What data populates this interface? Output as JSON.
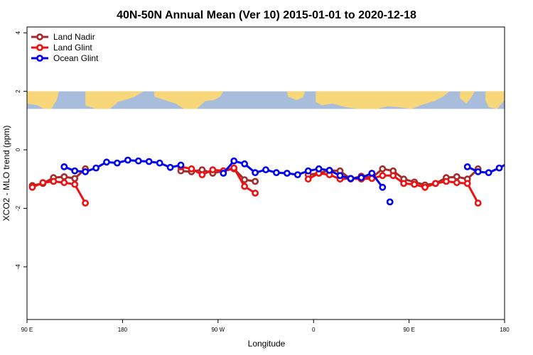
{
  "chart_data": {
    "type": "line",
    "title": "40N-50N Annual Mean (Ver 10)   2015-01-01 to 2020-12-18",
    "xlabel": "Longitude",
    "ylabel": "XCO2 - MLO trend (ppm)",
    "xlim": [
      90,
      540
    ],
    "ylim": [
      -5.8,
      4.2
    ],
    "x_ticks": [
      {
        "value": 90,
        "label": "90 E"
      },
      {
        "value": 180,
        "label": "180"
      },
      {
        "value": 270,
        "label": "90 W"
      },
      {
        "value": 360,
        "label": "0"
      },
      {
        "value": 450,
        "label": "90 E"
      },
      {
        "value": 540,
        "label": "180"
      }
    ],
    "y_ticks": [
      {
        "value": 4,
        "label": "4"
      },
      {
        "value": 2,
        "label": "2"
      },
      {
        "value": 0,
        "label": "0"
      },
      {
        "value": -2,
        "label": "-2"
      },
      {
        "value": -4,
        "label": "-4"
      }
    ],
    "legend_position": "top-left",
    "map_band": {
      "ymin": 1.4,
      "ymax": 2.0,
      "ocean_color": "#a8bddb",
      "land_color": "#f8d67a"
    },
    "series": [
      {
        "name": "Land Nadir",
        "color": "#a52a2a",
        "segments": [
          [
            [
              95,
              -1.22
            ],
            [
              105,
              -1.15
            ],
            [
              115,
              -0.95
            ],
            [
              125,
              -0.92
            ],
            [
              135,
              -0.98
            ],
            [
              145,
              -0.65
            ]
          ],
          [
            [
              235,
              -0.72
            ],
            [
              245,
              -0.75
            ],
            [
              255,
              -0.68
            ],
            [
              265,
              -0.8
            ],
            [
              275,
              -0.72
            ],
            [
              285,
              -0.65
            ],
            [
              295,
              -1.02
            ],
            [
              305,
              -1.08
            ]
          ],
          [
            [
              355,
              -0.85
            ],
            [
              365,
              -0.8
            ],
            [
              375,
              -0.7
            ],
            [
              385,
              -0.72
            ],
            [
              395,
              -1.0
            ],
            [
              405,
              -0.9
            ],
            [
              415,
              -0.95
            ],
            [
              425,
              -0.65
            ],
            [
              435,
              -0.72
            ],
            [
              445,
              -1.0
            ],
            [
              455,
              -1.1
            ],
            [
              465,
              -1.2
            ],
            [
              475,
              -1.15
            ],
            [
              485,
              -0.95
            ],
            [
              495,
              -0.92
            ],
            [
              505,
              -1.0
            ],
            [
              515,
              -0.65
            ]
          ]
        ]
      },
      {
        "name": "Land Glint",
        "color": "#ee1111",
        "segments": [
          [
            [
              95,
              -1.28
            ],
            [
              105,
              -1.12
            ],
            [
              115,
              -1.08
            ],
            [
              125,
              -1.12
            ],
            [
              135,
              -1.18
            ],
            [
              145,
              -1.82
            ]
          ],
          [
            [
              235,
              -0.58
            ],
            [
              245,
              -0.65
            ],
            [
              255,
              -0.85
            ],
            [
              265,
              -0.68
            ],
            [
              275,
              -0.72
            ],
            [
              285,
              -0.62
            ],
            [
              295,
              -1.25
            ],
            [
              305,
              -1.48
            ]
          ],
          [
            [
              355,
              -1.0
            ],
            [
              365,
              -0.8
            ],
            [
              375,
              -0.85
            ],
            [
              385,
              -1.0
            ],
            [
              395,
              -0.98
            ],
            [
              405,
              -1.0
            ],
            [
              415,
              -0.98
            ],
            [
              425,
              -0.88
            ],
            [
              435,
              -0.88
            ],
            [
              445,
              -1.15
            ],
            [
              455,
              -1.18
            ],
            [
              465,
              -1.28
            ],
            [
              475,
              -1.15
            ],
            [
              485,
              -1.08
            ],
            [
              495,
              -1.12
            ],
            [
              505,
              -1.15
            ],
            [
              515,
              -1.82
            ]
          ]
        ]
      },
      {
        "name": "Ocean Glint",
        "color": "#0000ee",
        "segments": [
          [
            [
              125,
              -0.58
            ],
            [
              135,
              -0.72
            ],
            [
              145,
              -0.75
            ],
            [
              155,
              -0.62
            ],
            [
              165,
              -0.42
            ],
            [
              175,
              -0.45
            ],
            [
              185,
              -0.35
            ],
            [
              195,
              -0.38
            ],
            [
              205,
              -0.4
            ],
            [
              215,
              -0.45
            ],
            [
              225,
              -0.6
            ],
            [
              235,
              -0.52
            ]
          ],
          [
            [
              275,
              -0.8
            ],
            [
              285,
              -0.38
            ],
            [
              295,
              -0.48
            ],
            [
              305,
              -0.78
            ],
            [
              315,
              -0.68
            ],
            [
              325,
              -0.78
            ],
            [
              335,
              -0.8
            ],
            [
              345,
              -0.85
            ],
            [
              355,
              -0.72
            ],
            [
              365,
              -0.65
            ],
            [
              375,
              -0.7
            ],
            [
              385,
              -0.88
            ],
            [
              395,
              -0.98
            ],
            [
              405,
              -0.95
            ],
            [
              415,
              -0.8
            ],
            [
              425,
              -1.28
            ]
          ],
          [
            [
              432,
              -1.78
            ]
          ],
          [
            [
              505,
              -0.58
            ],
            [
              515,
              -0.75
            ],
            [
              525,
              -0.78
            ],
            [
              535,
              -0.62
            ],
            [
              545,
              -0.42
            ],
            [
              555,
              -0.45
            ]
          ]
        ]
      }
    ]
  }
}
